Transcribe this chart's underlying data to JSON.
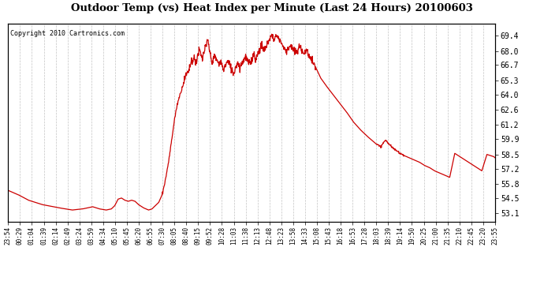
{
  "title": "Outdoor Temp (vs) Heat Index per Minute (Last 24 Hours) 20100603",
  "copyright": "Copyright 2010 Cartronics.com",
  "line_color": "#cc0000",
  "background_color": "#ffffff",
  "grid_color": "#aaaaaa",
  "yticks": [
    53.1,
    54.5,
    55.8,
    57.2,
    58.5,
    59.9,
    61.2,
    62.6,
    64.0,
    65.3,
    66.7,
    68.0,
    69.4
  ],
  "ylim": [
    52.3,
    70.5
  ],
  "xtick_labels": [
    "23:54",
    "00:29",
    "01:04",
    "01:39",
    "02:14",
    "02:49",
    "03:24",
    "03:59",
    "04:34",
    "05:10",
    "05:45",
    "06:20",
    "06:55",
    "07:30",
    "08:05",
    "08:40",
    "09:15",
    "09:52",
    "10:28",
    "11:03",
    "11:38",
    "12:13",
    "12:48",
    "13:23",
    "13:58",
    "14:33",
    "15:08",
    "15:43",
    "16:18",
    "16:53",
    "17:28",
    "18:03",
    "18:39",
    "19:14",
    "19:50",
    "20:25",
    "21:00",
    "21:35",
    "22:10",
    "22:45",
    "23:20",
    "23:55"
  ],
  "num_points": 1440,
  "key_times": {
    "0": 55.2,
    "30": 54.8,
    "60": 54.3,
    "100": 53.9,
    "150": 53.6,
    "190": 53.4,
    "220": 53.5,
    "250": 53.7,
    "270": 53.5,
    "290": 53.4,
    "305": 53.5,
    "315": 53.8,
    "325": 54.4,
    "335": 54.5,
    "345": 54.3,
    "355": 54.2,
    "365": 54.3,
    "375": 54.2,
    "385": 53.9,
    "400": 53.6,
    "415": 53.4,
    "425": 53.5,
    "435": 53.8,
    "445": 54.1,
    "455": 54.8,
    "465": 56.2,
    "475": 58.0,
    "485": 60.2,
    "492": 61.8,
    "498": 62.8,
    "503": 63.5,
    "510": 64.2,
    "516": 64.8,
    "522": 65.5,
    "528": 65.9,
    "534": 66.3,
    "538": 66.7,
    "542": 67.2,
    "546": 67.0,
    "550": 67.5,
    "554": 66.9,
    "558": 67.3,
    "562": 67.8,
    "566": 68.0,
    "570": 67.6,
    "574": 67.2,
    "578": 67.8,
    "582": 68.2,
    "586": 68.5,
    "590": 69.0,
    "594": 68.3,
    "598": 67.5,
    "604": 67.0,
    "610": 67.5,
    "616": 67.2,
    "622": 66.8,
    "628": 67.0,
    "634": 66.5,
    "638": 66.3,
    "642": 66.7,
    "648": 67.0,
    "654": 66.8,
    "660": 66.3,
    "666": 65.9,
    "672": 66.5,
    "678": 67.0,
    "684": 66.5,
    "690": 66.8,
    "696": 67.2,
    "702": 67.5,
    "708": 67.0,
    "714": 66.8,
    "720": 67.2,
    "726": 67.8,
    "732": 67.2,
    "738": 67.8,
    "744": 68.2,
    "750": 68.5,
    "756": 68.0,
    "762": 68.3,
    "768": 68.8,
    "774": 69.2,
    "778": 69.4,
    "782": 69.3,
    "786": 69.1,
    "790": 69.3,
    "794": 69.4,
    "798": 69.2,
    "804": 69.0,
    "810": 68.6,
    "816": 68.2,
    "822": 68.0,
    "828": 68.3,
    "834": 68.5,
    "840": 68.2,
    "846": 68.0,
    "852": 67.8,
    "858": 68.2,
    "864": 68.4,
    "870": 68.0,
    "876": 67.8,
    "882": 68.0,
    "888": 67.7,
    "894": 67.3,
    "900": 67.0,
    "912": 66.3,
    "924": 65.5,
    "940": 64.8,
    "960": 64.0,
    "980": 63.2,
    "1000": 62.4,
    "1020": 61.5,
    "1040": 60.8,
    "1060": 60.2,
    "1075": 59.8,
    "1090": 59.4,
    "1100": 59.2,
    "1108": 59.5,
    "1115": 59.8,
    "1122": 59.6,
    "1130": 59.3,
    "1140": 59.0,
    "1150": 58.8,
    "1160": 58.6,
    "1170": 58.4,
    "1185": 58.2,
    "1200": 58.0,
    "1215": 57.8,
    "1230": 57.5,
    "1245": 57.3,
    "1260": 57.0,
    "1275": 56.8,
    "1290": 56.6,
    "1305": 56.4,
    "1320": 58.6,
    "1330": 58.4,
    "1340": 58.2,
    "1350": 58.0,
    "1360": 57.8,
    "1370": 57.6,
    "1380": 57.4,
    "1390": 57.2,
    "1400": 57.0,
    "1415": 58.5,
    "1425": 58.4,
    "1435": 58.3,
    "1439": 58.2
  }
}
